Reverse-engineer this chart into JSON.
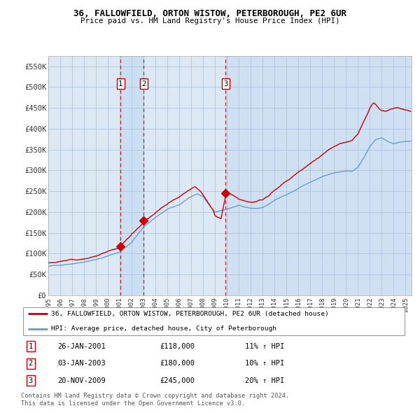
{
  "title": "36, FALLOWFIELD, ORTON WISTOW, PETERBOROUGH, PE2 6UR",
  "subtitle": "Price paid vs. HM Land Registry's House Price Index (HPI)",
  "legend_line1": "36, FALLOWFIELD, ORTON WISTOW, PETERBOROUGH, PE2 6UR (detached house)",
  "legend_line2": "HPI: Average price, detached house, City of Peterborough",
  "footer1": "Contains HM Land Registry data © Crown copyright and database right 2024.",
  "footer2": "This data is licensed under the Open Government Licence v3.0.",
  "transactions": [
    {
      "num": 1,
      "date": "26-JAN-2001",
      "price": 118000,
      "hpi_diff": "11% ↑ HPI",
      "x_year": 2001.07
    },
    {
      "num": 2,
      "date": "03-JAN-2003",
      "price": 180000,
      "hpi_diff": "10% ↑ HPI",
      "x_year": 2003.01
    },
    {
      "num": 3,
      "date": "20-NOV-2009",
      "price": 245000,
      "hpi_diff": "20% ↑ HPI",
      "x_year": 2009.89
    }
  ],
  "plot_bg_color": "#dce9f5",
  "grid_color": "#b0c4de",
  "red_line_color": "#cc0000",
  "blue_line_color": "#6699cc",
  "dashed_vline_color": "#cc0000",
  "ylim": [
    0,
    575000
  ],
  "xlim_start": 1995.0,
  "xlim_end": 2025.5,
  "yticks": [
    0,
    50000,
    100000,
    150000,
    200000,
    250000,
    300000,
    350000,
    400000,
    450000,
    500000,
    550000
  ],
  "ytick_labels": [
    "£0",
    "£50K",
    "£100K",
    "£150K",
    "£200K",
    "£250K",
    "£300K",
    "£350K",
    "£400K",
    "£450K",
    "£500K",
    "£550K"
  ],
  "xticks": [
    1995,
    1996,
    1997,
    1998,
    1999,
    2000,
    2001,
    2002,
    2003,
    2004,
    2005,
    2006,
    2007,
    2008,
    2009,
    2010,
    2011,
    2012,
    2013,
    2014,
    2015,
    2016,
    2017,
    2018,
    2019,
    2020,
    2021,
    2022,
    2023,
    2024,
    2025
  ]
}
